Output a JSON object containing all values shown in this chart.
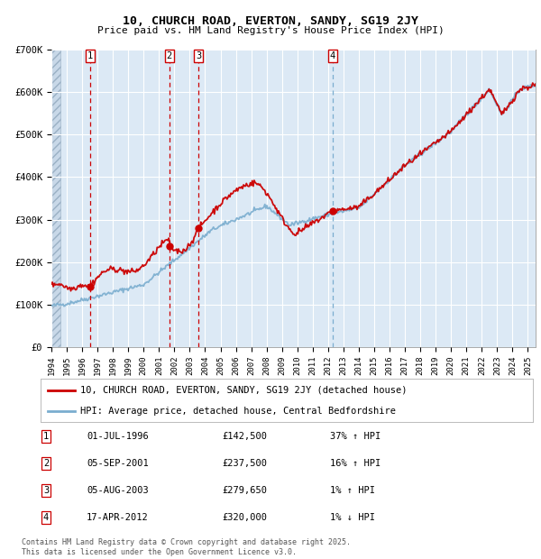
{
  "title_line1": "10, CHURCH ROAD, EVERTON, SANDY, SG19 2JY",
  "title_line2": "Price paid vs. HM Land Registry's House Price Index (HPI)",
  "ylabel_ticks": [
    "£0",
    "£100K",
    "£200K",
    "£300K",
    "£400K",
    "£500K",
    "£600K",
    "£700K"
  ],
  "ylim": [
    0,
    700000
  ],
  "ytick_vals": [
    0,
    100000,
    200000,
    300000,
    400000,
    500000,
    600000,
    700000
  ],
  "xlim_start": 1994.0,
  "xlim_end": 2025.5,
  "sale_dates_yr": [
    1996.5,
    2001.67,
    2003.59,
    2012.29
  ],
  "sale_prices": [
    142500,
    237500,
    279650,
    320000
  ],
  "sale_labels": [
    "1",
    "2",
    "3",
    "4"
  ],
  "legend_line1": "10, CHURCH ROAD, EVERTON, SANDY, SG19 2JY (detached house)",
  "legend_line2": "HPI: Average price, detached house, Central Bedfordshire",
  "table_entries": [
    {
      "num": "1",
      "date": "01-JUL-1996",
      "price": "£142,500",
      "pct": "37% ↑ HPI"
    },
    {
      "num": "2",
      "date": "05-SEP-2001",
      "price": "£237,500",
      "pct": "16% ↑ HPI"
    },
    {
      "num": "3",
      "date": "05-AUG-2003",
      "price": "£279,650",
      "pct": "1% ↑ HPI"
    },
    {
      "num": "4",
      "date": "17-APR-2012",
      "price": "£320,000",
      "pct": "1% ↓ HPI"
    }
  ],
  "footnote": "Contains HM Land Registry data © Crown copyright and database right 2025.\nThis data is licensed under the Open Government Licence v3.0.",
  "background_color": "#dce9f5",
  "hatch_color": "#c0cedd",
  "grid_color": "#ffffff",
  "red_line_color": "#cc0000",
  "blue_line_color": "#7aadcf"
}
